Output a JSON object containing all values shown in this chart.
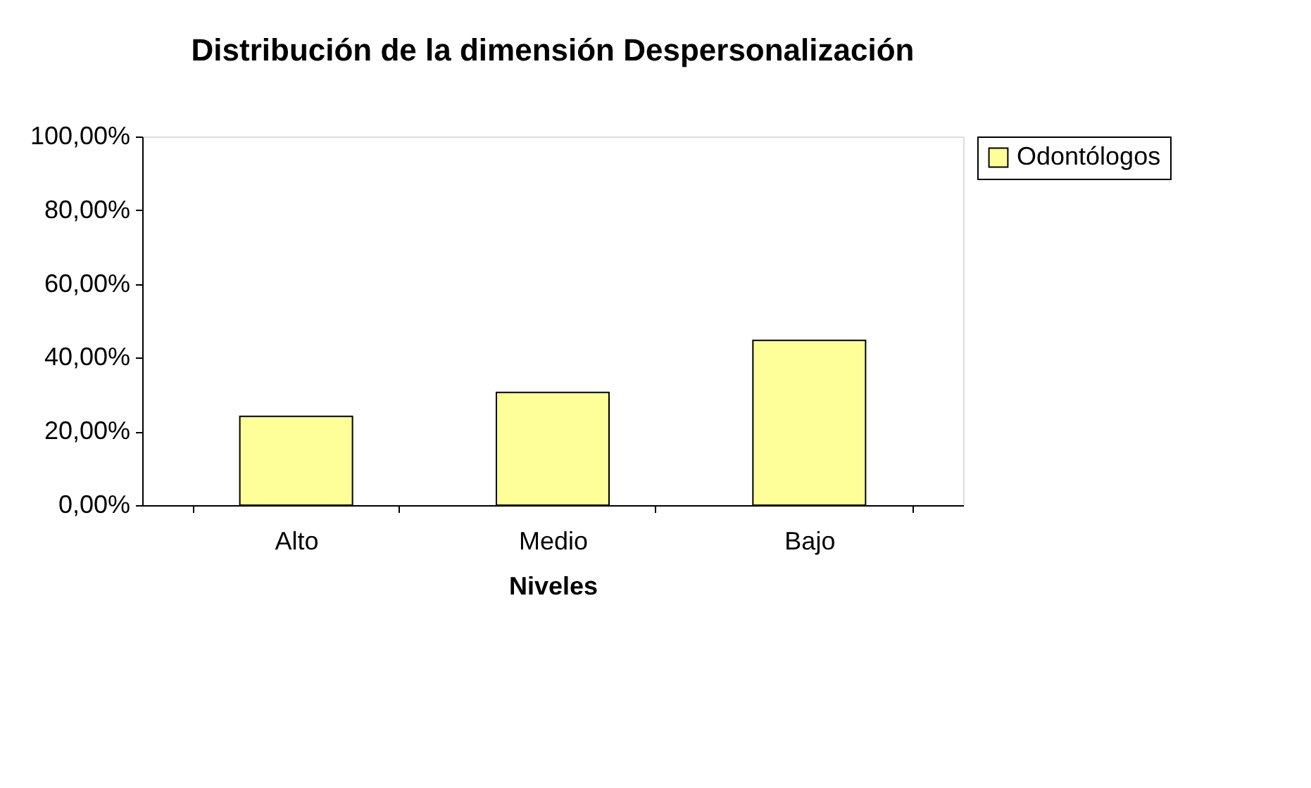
{
  "chart_data": {
    "type": "bar",
    "title": "Distribución de la dimensión Despersonalización",
    "xlabel": "Niveles",
    "categories": [
      "Alto",
      "Medio",
      "Bajo"
    ],
    "series": [
      {
        "name": "Odontólogos",
        "color": "#ffff99",
        "values": [
          24.1,
          30.6,
          44.7
        ]
      }
    ],
    "ylim": [
      0,
      100
    ],
    "yticks": [
      {
        "value": 0,
        "label": "0,00%"
      },
      {
        "value": 20,
        "label": "20,00%"
      },
      {
        "value": 40,
        "label": "40,00%"
      },
      {
        "value": 60,
        "label": "60,00%"
      },
      {
        "value": 80,
        "label": "80,00%"
      },
      {
        "value": 100,
        "label": "100,00%"
      }
    ],
    "grid": false,
    "legend": "right"
  }
}
